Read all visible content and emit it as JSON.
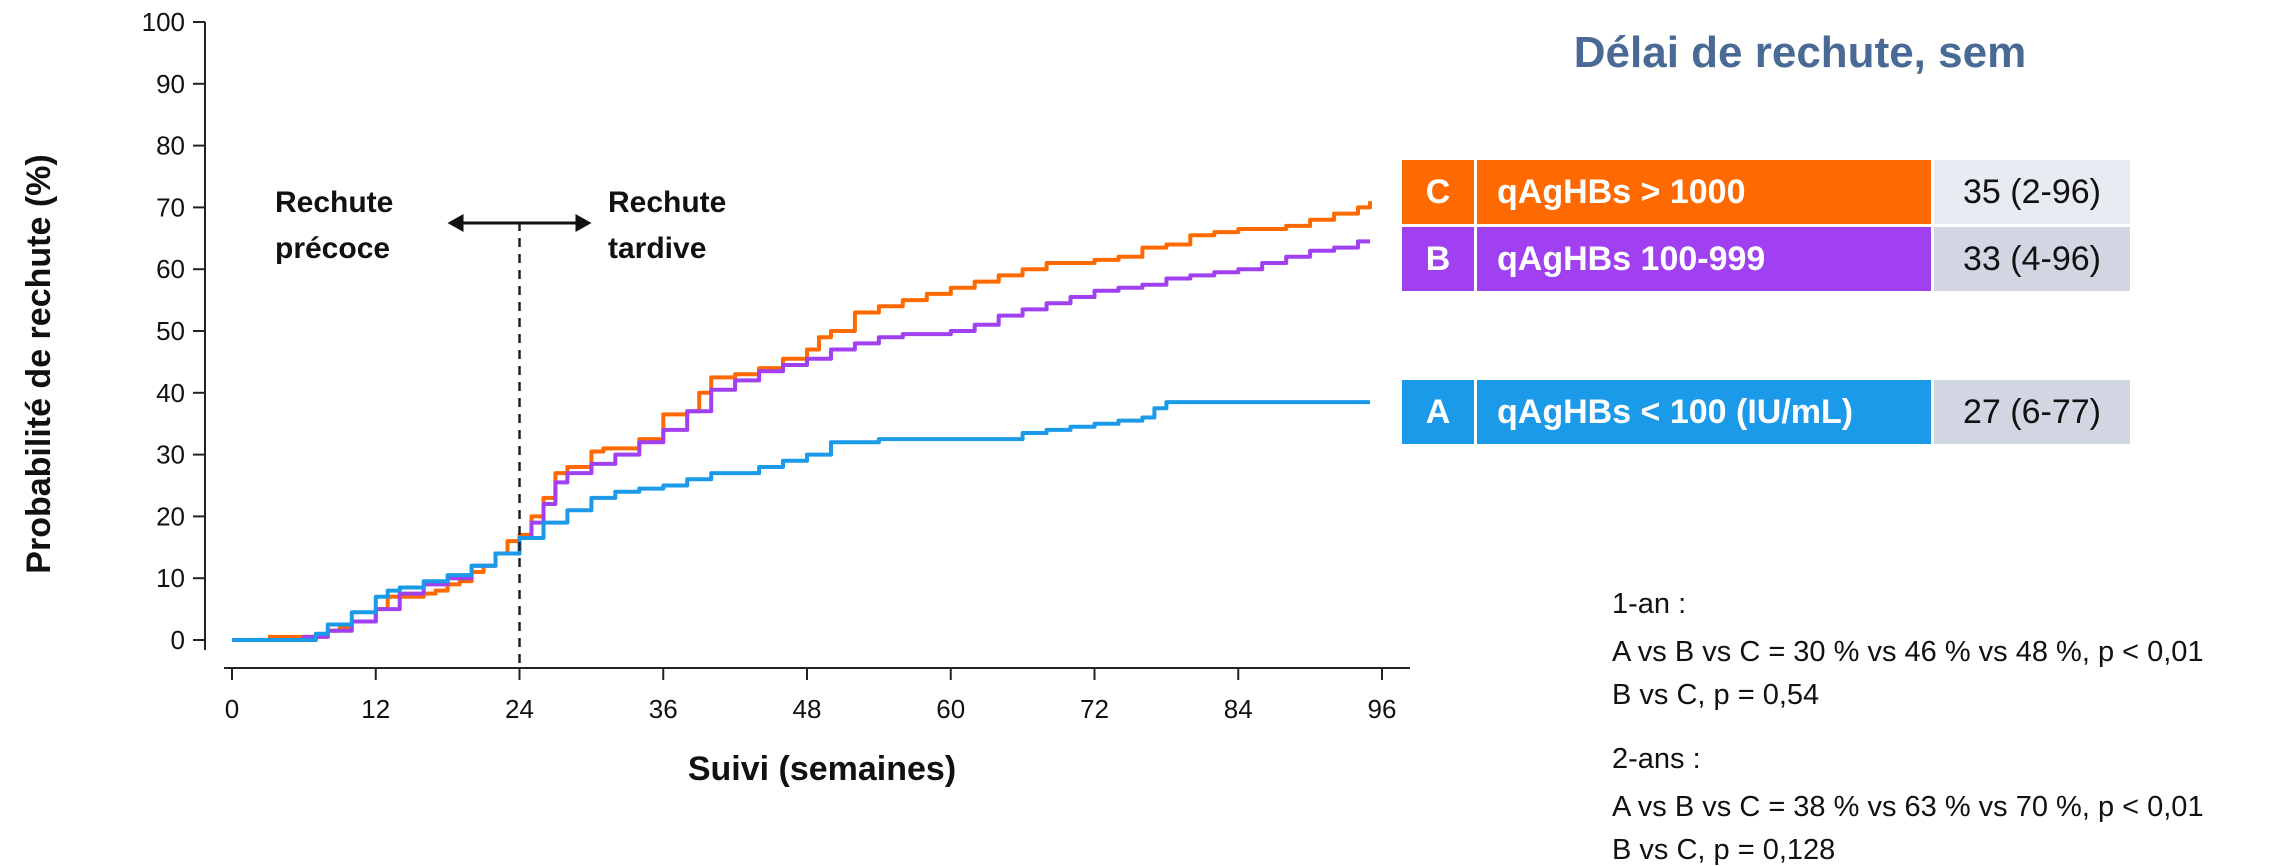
{
  "chart_data": {
    "type": "line",
    "title": "",
    "xlabel": "Suivi (semaines)",
    "ylabel": "Probabilité de rechute (%)",
    "xlim": [
      0,
      96
    ],
    "ylim": [
      0,
      100
    ],
    "xticks": [
      0,
      12,
      24,
      36,
      48,
      60,
      72,
      84,
      96
    ],
    "yticks": [
      0,
      10,
      20,
      30,
      40,
      50,
      60,
      70,
      80,
      90,
      100
    ],
    "grid": false,
    "series": [
      {
        "name": "C",
        "color": "#ff6a00",
        "x": [
          3,
          6,
          8,
          9,
          10,
          12,
          13,
          14,
          16,
          17,
          18,
          19,
          20,
          21,
          22,
          23,
          24,
          25,
          26,
          27,
          28,
          30,
          31,
          32,
          34,
          36,
          38,
          39,
          40,
          42,
          44,
          46,
          48,
          49,
          50,
          52,
          54,
          56,
          58,
          60,
          62,
          64,
          66,
          68,
          70,
          72,
          74,
          76,
          78,
          80,
          82,
          84,
          88,
          90,
          92,
          94,
          95
        ],
        "y": [
          0.5,
          0.5,
          1.5,
          2,
          3,
          5,
          7,
          7,
          7.5,
          8,
          9,
          9.5,
          11,
          12,
          14,
          16,
          17,
          20,
          23,
          27,
          28,
          30.5,
          31,
          31,
          32.5,
          36.5,
          37,
          40,
          42.5,
          43,
          44,
          45.5,
          47,
          49,
          50,
          53,
          54,
          55,
          56,
          57,
          58,
          59,
          60,
          61,
          61,
          61.5,
          62,
          63.5,
          64,
          65.5,
          66,
          66.5,
          67,
          68,
          69,
          70,
          71
        ]
      },
      {
        "name": "B",
        "color": "#a040f0",
        "x": [
          0,
          6,
          8,
          10,
          12,
          14,
          16,
          18,
          20,
          22,
          24,
          25,
          26,
          27,
          28,
          30,
          32,
          34,
          36,
          38,
          40,
          42,
          44,
          46,
          48,
          50,
          52,
          54,
          56,
          58,
          60,
          62,
          64,
          66,
          68,
          70,
          72,
          74,
          76,
          78,
          80,
          82,
          84,
          86,
          88,
          90,
          92,
          94,
          95
        ],
        "y": [
          0,
          0.5,
          1.5,
          3,
          5,
          7.5,
          9,
          10,
          12,
          14,
          16.5,
          19,
          22,
          25.5,
          27,
          28.5,
          30,
          32,
          34,
          37,
          40.5,
          42,
          43.5,
          44.5,
          45.5,
          47,
          48,
          49,
          49.5,
          49.5,
          50,
          51,
          52.5,
          53.5,
          54.5,
          55.5,
          56.5,
          57,
          57.5,
          58.5,
          59,
          59.5,
          60,
          61,
          62,
          63,
          63.5,
          64.5,
          64.5
        ]
      },
      {
        "name": "A",
        "color": "#1a9ae8",
        "x": [
          0,
          6,
          7,
          8,
          10,
          12,
          13,
          14,
          16,
          18,
          20,
          22,
          24,
          26,
          28,
          30,
          32,
          34,
          36,
          38,
          40,
          42,
          44,
          46,
          48,
          50,
          52,
          54,
          56,
          58,
          60,
          62,
          64,
          66,
          68,
          70,
          72,
          74,
          76,
          77,
          78,
          80,
          84,
          88,
          92,
          95
        ],
        "y": [
          0,
          0,
          1,
          2.5,
          4.5,
          7,
          8,
          8.5,
          9.5,
          10.5,
          12,
          14,
          16.5,
          19,
          21,
          23,
          24,
          24.5,
          25,
          26,
          27,
          27,
          28,
          29,
          30,
          32,
          32,
          32.5,
          32.5,
          32.5,
          32.5,
          32.5,
          32.5,
          33.5,
          34,
          34.5,
          35,
          35.5,
          36,
          37.5,
          38.5,
          38.5,
          38.5,
          38.5,
          38.5,
          38.5
        ]
      }
    ],
    "annotations": {
      "divider_week": 24,
      "early_label_lines": [
        "Rechute",
        "précoce"
      ],
      "late_label_lines": [
        "Rechute",
        "tardive"
      ]
    },
    "legend": {
      "title": "Délai de rechute, sem",
      "placement": "top-right",
      "rows": [
        {
          "letter": "C",
          "label": "qAgHBs > 1000",
          "value": "35 (2-96)",
          "color": "#ff6a00",
          "value_bg": "#e8ebf2"
        },
        {
          "letter": "B",
          "label": "qAgHBs 100-999",
          "value": "33 (4-96)",
          "color": "#a040f0",
          "value_bg": "#d2d6e2"
        },
        {
          "letter": "A",
          "label": "qAgHBs < 100 (IU/mL)",
          "value": "27 (6-77)",
          "color": "#1a9ae8",
          "value_bg": "#d2d6e2"
        }
      ]
    }
  },
  "stats": {
    "one_year": {
      "header": "1-an :",
      "line1": "A vs B vs C = 30 % vs 46 % vs 48 %, p < 0,01",
      "line2": "B vs C, p = 0,54"
    },
    "two_years": {
      "header": "2-ans :",
      "line1": "A vs B vs C = 38 % vs 63 % vs 70 %, p < 0,01",
      "line2": "B vs C, p = 0,128"
    }
  }
}
